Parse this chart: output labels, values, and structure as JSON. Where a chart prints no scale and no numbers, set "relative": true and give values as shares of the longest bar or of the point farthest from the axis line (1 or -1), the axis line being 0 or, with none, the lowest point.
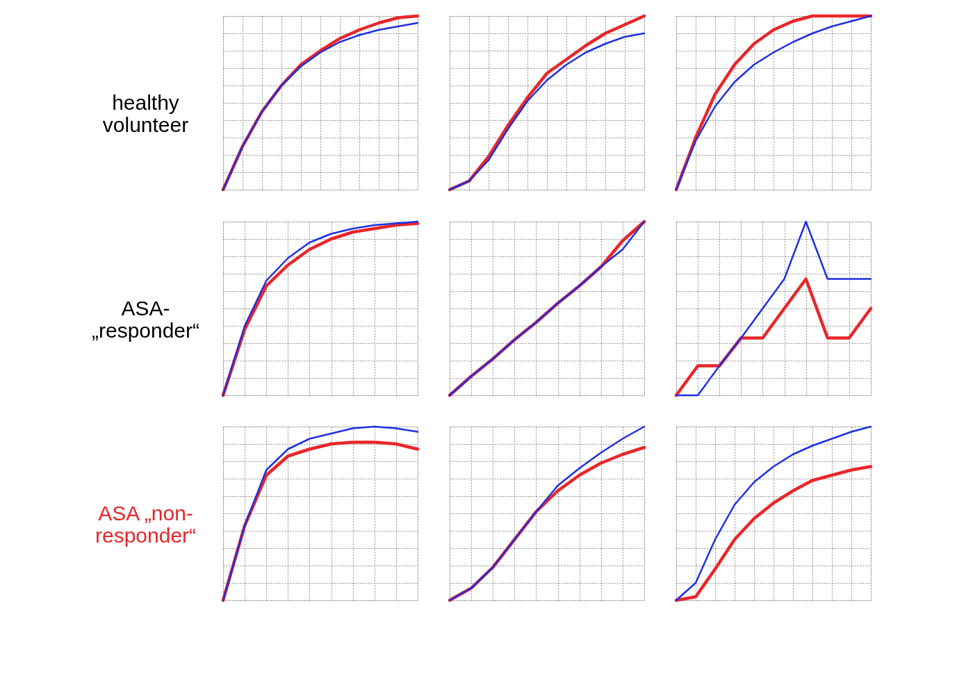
{
  "chart_data": [
    {
      "type": "line",
      "relative": true,
      "ylabel": "healthy\nvolunteer",
      "grid": true,
      "tick_labels": false,
      "categories": [
        null,
        null,
        null,
        null,
        null,
        null,
        null,
        null,
        null,
        null,
        null
      ],
      "series": [
        {
          "color": "#e8262a",
          "values": [
            0,
            0.25,
            0.45,
            0.6,
            0.72,
            0.8,
            0.87,
            0.92,
            0.96,
            0.99,
            1.0
          ]
        },
        {
          "color": "#1f2fe0",
          "values": [
            0,
            0.25,
            0.45,
            0.6,
            0.71,
            0.79,
            0.85,
            0.89,
            0.92,
            0.94,
            0.96
          ]
        }
      ]
    },
    {
      "type": "line",
      "relative": true,
      "grid": true,
      "tick_labels": false,
      "categories": [
        null,
        null,
        null,
        null,
        null,
        null,
        null,
        null,
        null,
        null,
        null
      ],
      "series": [
        {
          "color": "#e8262a",
          "values": [
            0,
            0.05,
            0.19,
            0.37,
            0.53,
            0.67,
            0.75,
            0.83,
            0.9,
            0.95,
            1
          ]
        },
        {
          "color": "#1f2fe0",
          "values": [
            0,
            0.05,
            0.17,
            0.35,
            0.51,
            0.63,
            0.72,
            0.79,
            0.84,
            0.88,
            0.9
          ]
        }
      ]
    },
    {
      "type": "line",
      "relative": true,
      "grid": true,
      "tick_labels": false,
      "categories": [
        null,
        null,
        null,
        null,
        null,
        null,
        null,
        null,
        null,
        null,
        null
      ],
      "series": [
        {
          "color": "#e8262a",
          "values": [
            0,
            0.3,
            0.55,
            0.72,
            0.84,
            0.92,
            0.97,
            1,
            1,
            1,
            1
          ]
        },
        {
          "color": "#1f2fe0",
          "values": [
            0,
            0.28,
            0.48,
            0.62,
            0.72,
            0.79,
            0.85,
            0.9,
            0.94,
            0.97,
            1
          ]
        }
      ]
    },
    {
      "type": "line",
      "relative": true,
      "ylabel": "ASA-\n„responder“",
      "grid": true,
      "tick_labels": false,
      "categories": [
        null,
        null,
        null,
        null,
        null,
        null,
        null,
        null,
        null,
        null
      ],
      "series": [
        {
          "color": "#e8262a",
          "values": [
            0,
            0.38,
            0.63,
            0.75,
            0.84,
            0.9,
            0.94,
            0.96,
            0.98,
            0.99
          ]
        },
        {
          "color": "#1f2fe0",
          "values": [
            0,
            0.4,
            0.66,
            0.79,
            0.88,
            0.93,
            0.96,
            0.98,
            0.99,
            1
          ]
        }
      ]
    },
    {
      "type": "line",
      "relative": true,
      "grid": true,
      "tick_labels": false,
      "categories": [
        null,
        null,
        null,
        null,
        null,
        null,
        null,
        null,
        null,
        null
      ],
      "series": [
        {
          "color": "#e8262a",
          "values": [
            0,
            0.11,
            0.21,
            0.32,
            0.42,
            0.53,
            0.63,
            0.74,
            0.89,
            1
          ]
        },
        {
          "color": "#1f2fe0",
          "values": [
            0,
            0.11,
            0.21,
            0.32,
            0.42,
            0.53,
            0.63,
            0.74,
            0.84,
            1
          ]
        }
      ]
    },
    {
      "type": "line",
      "relative": true,
      "grid": true,
      "tick_labels": false,
      "categories": [
        null,
        null,
        null,
        null,
        null,
        null,
        null,
        null,
        null,
        null
      ],
      "series": [
        {
          "color": "#e8262a",
          "values": [
            0,
            0.17,
            0.17,
            0.33,
            0.33,
            0.5,
            0.67,
            0.33,
            0.33,
            0.5
          ]
        },
        {
          "color": "#1f2fe0",
          "values": [
            0,
            0,
            0.17,
            0.33,
            0.5,
            0.67,
            1,
            0.67,
            0.67,
            0.67
          ]
        }
      ]
    },
    {
      "type": "line",
      "relative": true,
      "ylabel": "ASA „non-\nresponder“",
      "grid": true,
      "tick_labels": false,
      "categories": [
        null,
        null,
        null,
        null,
        null,
        null,
        null,
        null,
        null,
        null
      ],
      "series": [
        {
          "color": "#e8262a",
          "values": [
            0,
            0.43,
            0.72,
            0.83,
            0.87,
            0.9,
            0.91,
            0.91,
            0.9,
            0.87
          ]
        },
        {
          "color": "#1f2fe0",
          "values": [
            0,
            0.43,
            0.75,
            0.87,
            0.93,
            0.96,
            0.99,
            1,
            0.99,
            0.97
          ]
        }
      ]
    },
    {
      "type": "line",
      "relative": true,
      "grid": true,
      "tick_labels": false,
      "categories": [
        null,
        null,
        null,
        null,
        null,
        null,
        null,
        null,
        null,
        null
      ],
      "series": [
        {
          "color": "#e8262a",
          "values": [
            0,
            0.07,
            0.19,
            0.35,
            0.51,
            0.63,
            0.72,
            0.79,
            0.84,
            0.88
          ]
        },
        {
          "color": "#1f2fe0",
          "values": [
            0,
            0.07,
            0.19,
            0.35,
            0.51,
            0.66,
            0.76,
            0.85,
            0.93,
            1
          ]
        }
      ]
    },
    {
      "type": "line",
      "relative": true,
      "grid": true,
      "tick_labels": false,
      "categories": [
        null,
        null,
        null,
        null,
        null,
        null,
        null,
        null,
        null,
        null,
        null
      ],
      "series": [
        {
          "color": "#e8262a",
          "values": [
            0,
            0.02,
            0.18,
            0.35,
            0.47,
            0.56,
            0.63,
            0.69,
            0.72,
            0.75,
            0.77
          ]
        },
        {
          "color": "#1f2fe0",
          "values": [
            0,
            0.1,
            0.35,
            0.55,
            0.68,
            0.77,
            0.84,
            0.89,
            0.93,
            0.97,
            1
          ]
        }
      ]
    }
  ]
}
